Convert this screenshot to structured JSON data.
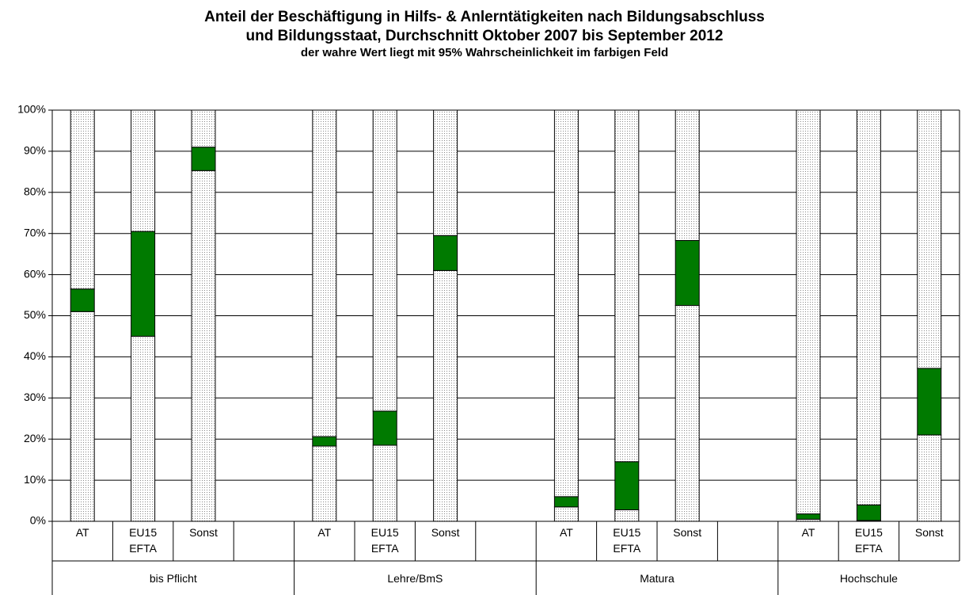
{
  "chart_data": {
    "type": "bar",
    "stacked": true,
    "title": "Anteil der Beschäftigung in Hilfs- & Anlerntätigkeiten nach Bildungsabschluss und Bildungsstaat, Durchschnitt Oktober 2007 bis September 2012",
    "subtitle": "der wahre Wert liegt mit 95% Wahrscheinlichkeit im farbigen Feld",
    "categories": [
      "AT",
      "EU15 EFTA",
      "Sonst",
      null,
      "AT",
      "EU15 EFTA",
      "Sonst",
      null,
      "AT",
      "EU15 EFTA",
      "Sonst",
      null,
      "AT",
      "EU15 EFTA",
      "Sonst"
    ],
    "groups": [
      "bis Pflicht",
      "Lehre/BmS",
      "Matura",
      "Hochschule"
    ],
    "series": [
      {
        "color": "dotted",
        "values": [
          51,
          45,
          85.3,
          null,
          18.3,
          18.5,
          61,
          null,
          3.5,
          2.8,
          52.5,
          null,
          0.5,
          0.2,
          21
        ]
      },
      {
        "color": "#007a00",
        "values": [
          5.5,
          25.5,
          5.7,
          null,
          2.3,
          8.3,
          8.5,
          null,
          2.5,
          11.7,
          15.8,
          null,
          1.3,
          3.8,
          16.2
        ]
      },
      {
        "color": "dotted",
        "values": [
          43.5,
          29.5,
          9,
          null,
          79.4,
          73.2,
          30.5,
          null,
          94,
          85.5,
          31.7,
          null,
          98.2,
          96,
          62.8
        ]
      }
    ],
    "ylim": [
      0,
      100
    ],
    "yticks": [
      {
        "value": 0,
        "label": "0%"
      },
      {
        "value": 10,
        "label": "10%"
      },
      {
        "value": 20,
        "label": "20%"
      },
      {
        "value": 30,
        "label": "30%"
      },
      {
        "value": 40,
        "label": "40%"
      },
      {
        "value": 50,
        "label": "50%"
      },
      {
        "value": 60,
        "label": "60%"
      },
      {
        "value": 70,
        "label": "70%"
      },
      {
        "value": 80,
        "label": "80%"
      },
      {
        "value": 90,
        "label": "90%"
      },
      {
        "value": 100,
        "label": "100%"
      }
    ],
    "grid": true
  }
}
